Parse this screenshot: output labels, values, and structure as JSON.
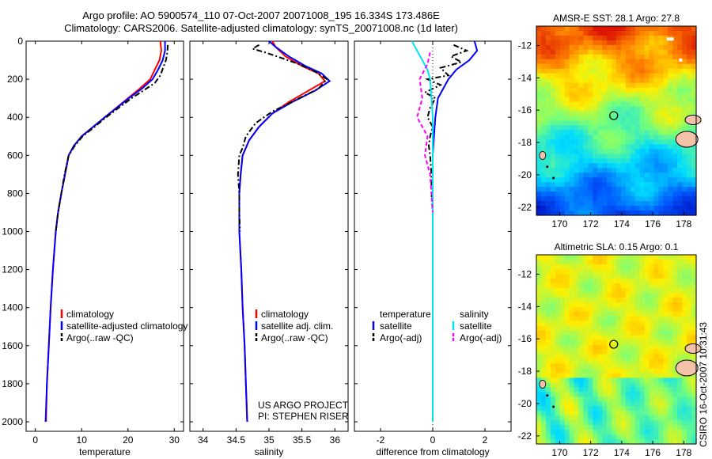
{
  "header": {
    "line1": "Argo profile: AO 5900574_110 07-Oct-2007 20071008_195 16.334S 173.486E",
    "line2": "Climatology: CARS2006. Satellite-adjusted climatology: synTS_20071008.nc (1d later)"
  },
  "side_label": "CSIRO 16-Oct-2007 10:31:43",
  "colors": {
    "climatology": "#ff0000",
    "satellite": "#0000ff",
    "argo": "#000000",
    "satellite_salinity": "#00e5ee",
    "argo_salinity": "#ff00ff"
  },
  "chart_data": [
    {
      "type": "line",
      "xlabel": "temperature",
      "ylabel": "",
      "xlim": [
        -2,
        32
      ],
      "ylim": [
        2050,
        0
      ],
      "xticks": [
        0,
        10,
        20,
        30
      ],
      "yticks": [
        0,
        200,
        400,
        600,
        800,
        1000,
        1200,
        1400,
        1600,
        1800,
        2000
      ],
      "legend": [
        "climatology",
        "satellite-adjusted climatology",
        "Argo(..raw -QC)"
      ],
      "series": [
        {
          "name": "climatology",
          "color": "#ff0000",
          "style": "solid",
          "points": [
            [
              27.0,
              0
            ],
            [
              27.2,
              50
            ],
            [
              26.8,
              100
            ],
            [
              25.8,
              150
            ],
            [
              24.8,
              200
            ],
            [
              22.5,
              250
            ],
            [
              20.0,
              300
            ],
            [
              17.5,
              350
            ],
            [
              15.0,
              400
            ],
            [
              12.5,
              450
            ],
            [
              10.0,
              500
            ],
            [
              8.3,
              550
            ],
            [
              7.2,
              600
            ],
            [
              6.4,
              700
            ],
            [
              5.6,
              800
            ],
            [
              4.9,
              900
            ],
            [
              4.4,
              1000
            ],
            [
              3.8,
              1200
            ],
            [
              3.3,
              1400
            ],
            [
              2.9,
              1600
            ],
            [
              2.5,
              1800
            ],
            [
              2.3,
              2000
            ]
          ]
        },
        {
          "name": "satellite-adjusted climatology",
          "color": "#0000ff",
          "style": "solid",
          "points": [
            [
              28.0,
              0
            ],
            [
              28.0,
              50
            ],
            [
              27.5,
              100
            ],
            [
              26.5,
              150
            ],
            [
              25.3,
              200
            ],
            [
              23.0,
              250
            ],
            [
              20.2,
              300
            ],
            [
              17.6,
              350
            ],
            [
              15.0,
              400
            ],
            [
              12.5,
              450
            ],
            [
              10.0,
              500
            ],
            [
              8.3,
              550
            ],
            [
              7.2,
              600
            ],
            [
              6.4,
              700
            ],
            [
              5.6,
              800
            ],
            [
              4.9,
              900
            ],
            [
              4.4,
              1000
            ],
            [
              3.8,
              1200
            ],
            [
              3.3,
              1400
            ],
            [
              2.9,
              1600
            ],
            [
              2.5,
              1800
            ],
            [
              2.2,
              2000
            ]
          ]
        },
        {
          "name": "Argo(..raw -QC)",
          "color": "#000000",
          "style": "dashdot",
          "points": [
            [
              28.6,
              20
            ],
            [
              28.5,
              60
            ],
            [
              28.2,
              100
            ],
            [
              27.6,
              140
            ],
            [
              27.0,
              180
            ],
            [
              25.8,
              220
            ],
            [
              23.3,
              260
            ],
            [
              20.8,
              300
            ],
            [
              18.0,
              350
            ],
            [
              15.3,
              400
            ],
            [
              12.8,
              450
            ],
            [
              10.2,
              500
            ],
            [
              8.5,
              550
            ],
            [
              7.2,
              600
            ],
            [
              6.3,
              700
            ],
            [
              5.6,
              800
            ],
            [
              4.9,
              900
            ],
            [
              4.4,
              1000
            ]
          ]
        }
      ]
    },
    {
      "type": "line",
      "xlabel": "salinity",
      "ylabel": "",
      "xlim": [
        33.8,
        36.2
      ],
      "ylim": [
        2050,
        0
      ],
      "xticks": [
        34,
        34.5,
        35,
        35.5,
        36
      ],
      "legend": [
        "climatology",
        "satellite adj. clim.",
        "Argo(..raw -QC)"
      ],
      "annotation": [
        "US ARGO PROJECT",
        "PI: STEPHEN RISER"
      ],
      "series": [
        {
          "name": "climatology",
          "color": "#ff0000",
          "style": "solid",
          "points": [
            [
              35.05,
              0
            ],
            [
              35.1,
              30
            ],
            [
              35.25,
              80
            ],
            [
              35.5,
              130
            ],
            [
              35.75,
              170
            ],
            [
              35.85,
              210
            ],
            [
              35.6,
              260
            ],
            [
              35.3,
              320
            ],
            [
              35.05,
              380
            ],
            [
              34.85,
              450
            ],
            [
              34.7,
              520
            ],
            [
              34.6,
              600
            ],
            [
              34.57,
              700
            ],
            [
              34.55,
              800
            ],
            [
              34.55,
              1000
            ],
            [
              34.58,
              1200
            ],
            [
              34.6,
              1400
            ],
            [
              34.63,
              1600
            ],
            [
              34.65,
              1800
            ],
            [
              34.67,
              2000
            ]
          ]
        },
        {
          "name": "satellite adj. clim.",
          "color": "#0000ff",
          "style": "solid",
          "points": [
            [
              35.0,
              0
            ],
            [
              35.1,
              30
            ],
            [
              35.3,
              80
            ],
            [
              35.55,
              130
            ],
            [
              35.8,
              170
            ],
            [
              35.92,
              210
            ],
            [
              35.7,
              260
            ],
            [
              35.35,
              320
            ],
            [
              35.05,
              380
            ],
            [
              34.85,
              450
            ],
            [
              34.7,
              520
            ],
            [
              34.6,
              600
            ],
            [
              34.57,
              700
            ],
            [
              34.55,
              800
            ],
            [
              34.55,
              1000
            ],
            [
              34.58,
              1200
            ],
            [
              34.6,
              1400
            ],
            [
              34.63,
              1600
            ],
            [
              34.65,
              1800
            ],
            [
              34.67,
              2000
            ]
          ]
        },
        {
          "name": "Argo(..raw -QC)",
          "color": "#000000",
          "style": "dashdot",
          "points": [
            [
              34.85,
              20
            ],
            [
              34.75,
              40
            ],
            [
              34.95,
              60
            ],
            [
              35.2,
              90
            ],
            [
              35.45,
              120
            ],
            [
              35.7,
              160
            ],
            [
              35.88,
              200
            ],
            [
              35.75,
              250
            ],
            [
              35.4,
              310
            ],
            [
              35.05,
              370
            ],
            [
              34.8,
              430
            ],
            [
              34.65,
              500
            ],
            [
              34.6,
              560
            ],
            [
              34.55,
              600
            ],
            [
              34.53,
              700
            ],
            [
              34.55,
              800
            ],
            [
              34.55,
              900
            ],
            [
              34.56,
              1000
            ]
          ]
        }
      ]
    },
    {
      "type": "line",
      "xlabel": "difference from climatology",
      "ylabel": "",
      "xlim": [
        -3,
        3
      ],
      "ylim": [
        2050,
        0
      ],
      "xticks": [
        -2,
        0,
        2
      ],
      "legend_headers": [
        "temperature",
        "salinity"
      ],
      "legend": [
        "satellite",
        "Argo(-adj)",
        "satellite",
        "Argo(-adj)"
      ],
      "series": [
        {
          "name": "satellite",
          "color": "#0000ff",
          "style": "solid",
          "points": [
            [
              1.6,
              0
            ],
            [
              1.7,
              50
            ],
            [
              1.4,
              100
            ],
            [
              0.9,
              150
            ],
            [
              0.6,
              200
            ],
            [
              0.4,
              250
            ],
            [
              0.2,
              300
            ],
            [
              0.1,
              400
            ],
            [
              0.05,
              500
            ],
            [
              0.0,
              600
            ],
            [
              0.0,
              800
            ],
            [
              0.0,
              1000
            ],
            [
              0.0,
              1500
            ],
            [
              0.0,
              2000
            ]
          ]
        },
        {
          "name": "Argo(-adj)",
          "color": "#000000",
          "style": "dashdot",
          "points": [
            [
              0.8,
              20
            ],
            [
              1.3,
              50
            ],
            [
              0.7,
              80
            ],
            [
              1.1,
              110
            ],
            [
              0.3,
              140
            ],
            [
              0.6,
              180
            ],
            [
              -0.2,
              200
            ],
            [
              0.3,
              230
            ],
            [
              -0.3,
              270
            ],
            [
              0.1,
              300
            ],
            [
              -0.1,
              350
            ],
            [
              -0.2,
              400
            ],
            [
              0.0,
              450
            ],
            [
              -0.1,
              500
            ],
            [
              -0.15,
              550
            ],
            [
              -0.1,
              600
            ],
            [
              -0.05,
              700
            ],
            [
              -0.05,
              800
            ],
            [
              0.0,
              900
            ],
            [
              0.0,
              1000
            ]
          ]
        },
        {
          "name": "satellite",
          "color": "#00e5ee",
          "style": "solid",
          "points": [
            [
              -0.8,
              0
            ],
            [
              -0.6,
              50
            ],
            [
              -0.4,
              100
            ],
            [
              -0.2,
              150
            ],
            [
              -0.1,
              200
            ],
            [
              -0.05,
              300
            ],
            [
              0.0,
              400
            ],
            [
              0.0,
              600
            ],
            [
              0.0,
              1000
            ],
            [
              0.0,
              2000
            ]
          ]
        },
        {
          "name": "Argo(-adj)",
          "color": "#ff00ff",
          "style": "dashed",
          "points": [
            [
              -0.1,
              60
            ],
            [
              -0.2,
              120
            ],
            [
              -0.5,
              200
            ],
            [
              -0.4,
              300
            ],
            [
              -0.6,
              400
            ],
            [
              -0.2,
              500
            ],
            [
              -0.3,
              600
            ],
            [
              -0.1,
              700
            ],
            [
              -0.05,
              800
            ],
            [
              0.0,
              900
            ]
          ]
        }
      ]
    },
    {
      "type": "heatmap",
      "title": "AMSR-E SST: 28.1 Argo: 27.8",
      "xlim": [
        168.5,
        178.8
      ],
      "ylim": [
        -22.5,
        -10.8
      ],
      "xticks": [
        170,
        172,
        174,
        176,
        178
      ],
      "yticks": [
        -12,
        -14,
        -16,
        -18,
        -20,
        -22
      ],
      "marker": [
        173.486,
        -16.334
      ]
    },
    {
      "type": "heatmap",
      "title": "Altimetric SLA: 0.15 Argo: 0.1",
      "xlim": [
        168.5,
        178.8
      ],
      "ylim": [
        -22.5,
        -10.8
      ],
      "xticks": [
        170,
        172,
        174,
        176,
        178
      ],
      "yticks": [
        -12,
        -14,
        -16,
        -18,
        -20,
        -22
      ],
      "marker": [
        173.486,
        -16.334
      ]
    }
  ]
}
